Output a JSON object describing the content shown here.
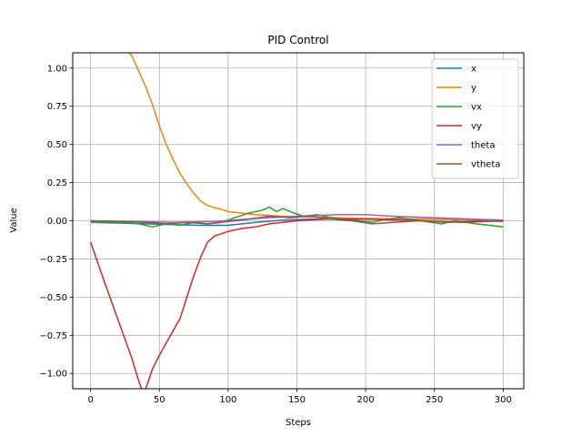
{
  "chart_data": {
    "type": "line",
    "title": "PID Control",
    "xlabel": "Steps",
    "ylabel": "Value",
    "xlim": [
      -13,
      315
    ],
    "ylim": [
      -1.1,
      1.1
    ],
    "xticks": [
      0,
      50,
      100,
      150,
      200,
      250,
      300
    ],
    "yticks": [
      -1.0,
      -0.75,
      -0.5,
      -0.25,
      0.0,
      0.25,
      0.5,
      0.75,
      1.0
    ],
    "ytick_labels": [
      "−1.00",
      "−0.75",
      "−0.50",
      "−0.25",
      "0.00",
      "0.25",
      "0.50",
      "0.75",
      "1.00"
    ],
    "grid": true,
    "legend_position": "top-right",
    "series": [
      {
        "name": "x",
        "color": "#1f77b4",
        "points": [
          [
            0,
            -0.01
          ],
          [
            20,
            -0.015
          ],
          [
            40,
            -0.02
          ],
          [
            60,
            -0.025
          ],
          [
            80,
            -0.03
          ],
          [
            100,
            -0.03
          ],
          [
            120,
            -0.01
          ],
          [
            140,
            0.005
          ],
          [
            160,
            0.01
          ],
          [
            180,
            0.012
          ],
          [
            200,
            0.015
          ],
          [
            230,
            0.012
          ],
          [
            260,
            0.01
          ],
          [
            300,
            0.005
          ]
        ]
      },
      {
        "name": "y",
        "color": "#ff7f0e",
        "points": [
          [
            28,
            1.1
          ],
          [
            30,
            1.08
          ],
          [
            35,
            0.98
          ],
          [
            40,
            0.88
          ],
          [
            45,
            0.76
          ],
          [
            50,
            0.62
          ],
          [
            55,
            0.5
          ],
          [
            60,
            0.4
          ],
          [
            65,
            0.31
          ],
          [
            70,
            0.24
          ],
          [
            75,
            0.18
          ],
          [
            80,
            0.13
          ],
          [
            85,
            0.1
          ],
          [
            90,
            0.085
          ],
          [
            95,
            0.075
          ],
          [
            100,
            0.06
          ],
          [
            110,
            0.05
          ],
          [
            120,
            0.04
          ],
          [
            140,
            0.03
          ],
          [
            160,
            0.025
          ],
          [
            180,
            0.02
          ],
          [
            200,
            0.015
          ],
          [
            240,
            0.01
          ],
          [
            300,
            0.005
          ]
        ]
      },
      {
        "name": "vx",
        "color": "#2ca02c",
        "points": [
          [
            0,
            -0.01
          ],
          [
            20,
            -0.01
          ],
          [
            35,
            -0.02
          ],
          [
            45,
            -0.04
          ],
          [
            55,
            -0.02
          ],
          [
            65,
            -0.03
          ],
          [
            75,
            -0.01
          ],
          [
            85,
            -0.02
          ],
          [
            95,
            -0.01
          ],
          [
            105,
            0.02
          ],
          [
            115,
            0.05
          ],
          [
            125,
            0.07
          ],
          [
            130,
            0.09
          ],
          [
            135,
            0.06
          ],
          [
            140,
            0.08
          ],
          [
            148,
            0.05
          ],
          [
            155,
            0.03
          ],
          [
            165,
            0.04
          ],
          [
            175,
            0.02
          ],
          [
            185,
            0.01
          ],
          [
            195,
            0.0
          ],
          [
            205,
            -0.01
          ],
          [
            215,
            0.01
          ],
          [
            225,
            0.02
          ],
          [
            240,
            0.0
          ],
          [
            255,
            -0.02
          ],
          [
            265,
            0.0
          ],
          [
            280,
            -0.02
          ],
          [
            290,
            -0.03
          ],
          [
            300,
            -0.04
          ]
        ]
      },
      {
        "name": "vy",
        "color": "#d62728",
        "points": [
          [
            0,
            -0.14
          ],
          [
            10,
            -0.4
          ],
          [
            20,
            -0.65
          ],
          [
            30,
            -0.9
          ],
          [
            35,
            -1.05
          ],
          [
            37,
            -1.1
          ],
          null,
          [
            40,
            -1.1
          ],
          [
            42,
            -1.05
          ],
          [
            45,
            -0.97
          ],
          [
            50,
            -0.88
          ],
          [
            55,
            -0.8
          ],
          [
            60,
            -0.72
          ],
          [
            65,
            -0.64
          ],
          [
            70,
            -0.5
          ],
          [
            75,
            -0.36
          ],
          [
            80,
            -0.24
          ],
          [
            85,
            -0.14
          ],
          [
            90,
            -0.1
          ],
          [
            100,
            -0.07
          ],
          [
            110,
            -0.05
          ],
          [
            120,
            -0.04
          ],
          [
            130,
            -0.02
          ],
          [
            140,
            -0.01
          ],
          [
            150,
            0.0
          ],
          [
            170,
            0.01
          ],
          [
            200,
            0.01
          ],
          [
            240,
            0.0
          ],
          [
            270,
            -0.01
          ],
          [
            300,
            0.0
          ]
        ]
      },
      {
        "name": "theta",
        "color": "#9467bd",
        "points": [
          [
            0,
            0.0
          ],
          [
            30,
            -0.005
          ],
          [
            60,
            -0.01
          ],
          [
            90,
            -0.005
          ],
          [
            120,
            0.015
          ],
          [
            150,
            0.03
          ],
          [
            180,
            0.04
          ],
          [
            200,
            0.04
          ],
          [
            220,
            0.03
          ],
          [
            250,
            0.02
          ],
          [
            280,
            0.01
          ],
          [
            300,
            0.005
          ]
        ]
      },
      {
        "name": "vtheta",
        "color": "#8c564b",
        "points": [
          [
            0,
            0.0
          ],
          [
            20,
            -0.005
          ],
          [
            40,
            -0.01
          ],
          [
            55,
            -0.02
          ],
          [
            70,
            -0.01
          ],
          [
            85,
            -0.02
          ],
          [
            100,
            -0.005
          ],
          [
            115,
            0.01
          ],
          [
            130,
            0.03
          ],
          [
            145,
            0.02
          ],
          [
            160,
            0.03
          ],
          [
            175,
            0.01
          ],
          [
            190,
            0.0
          ],
          [
            205,
            -0.02
          ],
          [
            220,
            -0.01
          ],
          [
            240,
            0.0
          ],
          [
            260,
            -0.01
          ],
          [
            280,
            0.0
          ],
          [
            300,
            -0.005
          ]
        ]
      }
    ]
  }
}
